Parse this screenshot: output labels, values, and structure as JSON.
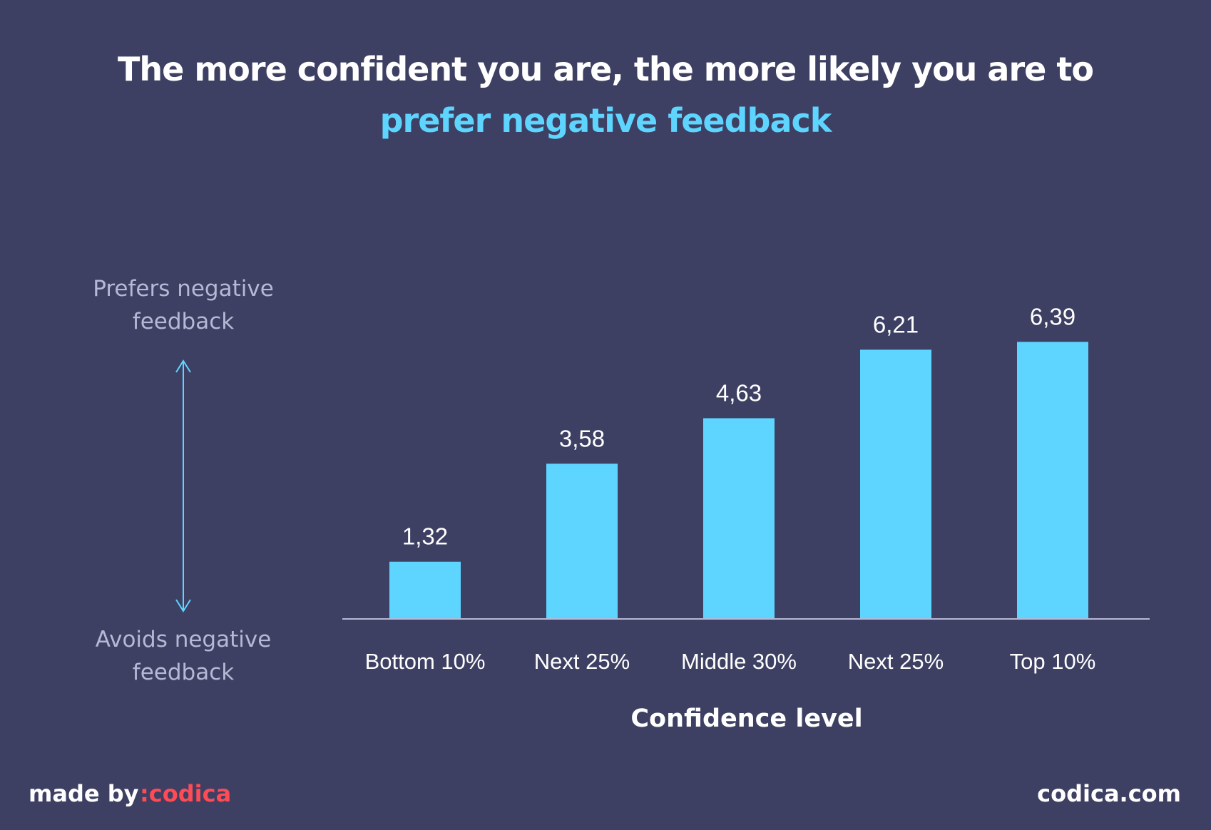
{
  "title": {
    "line1": "The more confident you are, the more likely you are to",
    "line2": "prefer negative feedback"
  },
  "y_axis": {
    "top_label": "Prefers negative feedback",
    "bottom_label": "Avoids negative feedback"
  },
  "footer": {
    "made_by": "made by",
    "brand": ":codica",
    "site": "codica.com"
  },
  "colors": {
    "background": "#3e4063",
    "bar": "#5ed5ff",
    "brand": "#ff4b55"
  },
  "chart_data": {
    "type": "bar",
    "categories": [
      "Bottom 10%",
      "Next 25%",
      "Middle 30%",
      "Next 25%",
      "Top 10%"
    ],
    "values": [
      1.32,
      3.58,
      4.63,
      6.21,
      6.39
    ],
    "value_labels": [
      "1,32",
      "3,58",
      "4,63",
      "6,21",
      "6,39"
    ],
    "xlabel": "Confidence level",
    "ylabel": "",
    "ylim": [
      0,
      7.5
    ],
    "grid": false,
    "legend": "none"
  }
}
